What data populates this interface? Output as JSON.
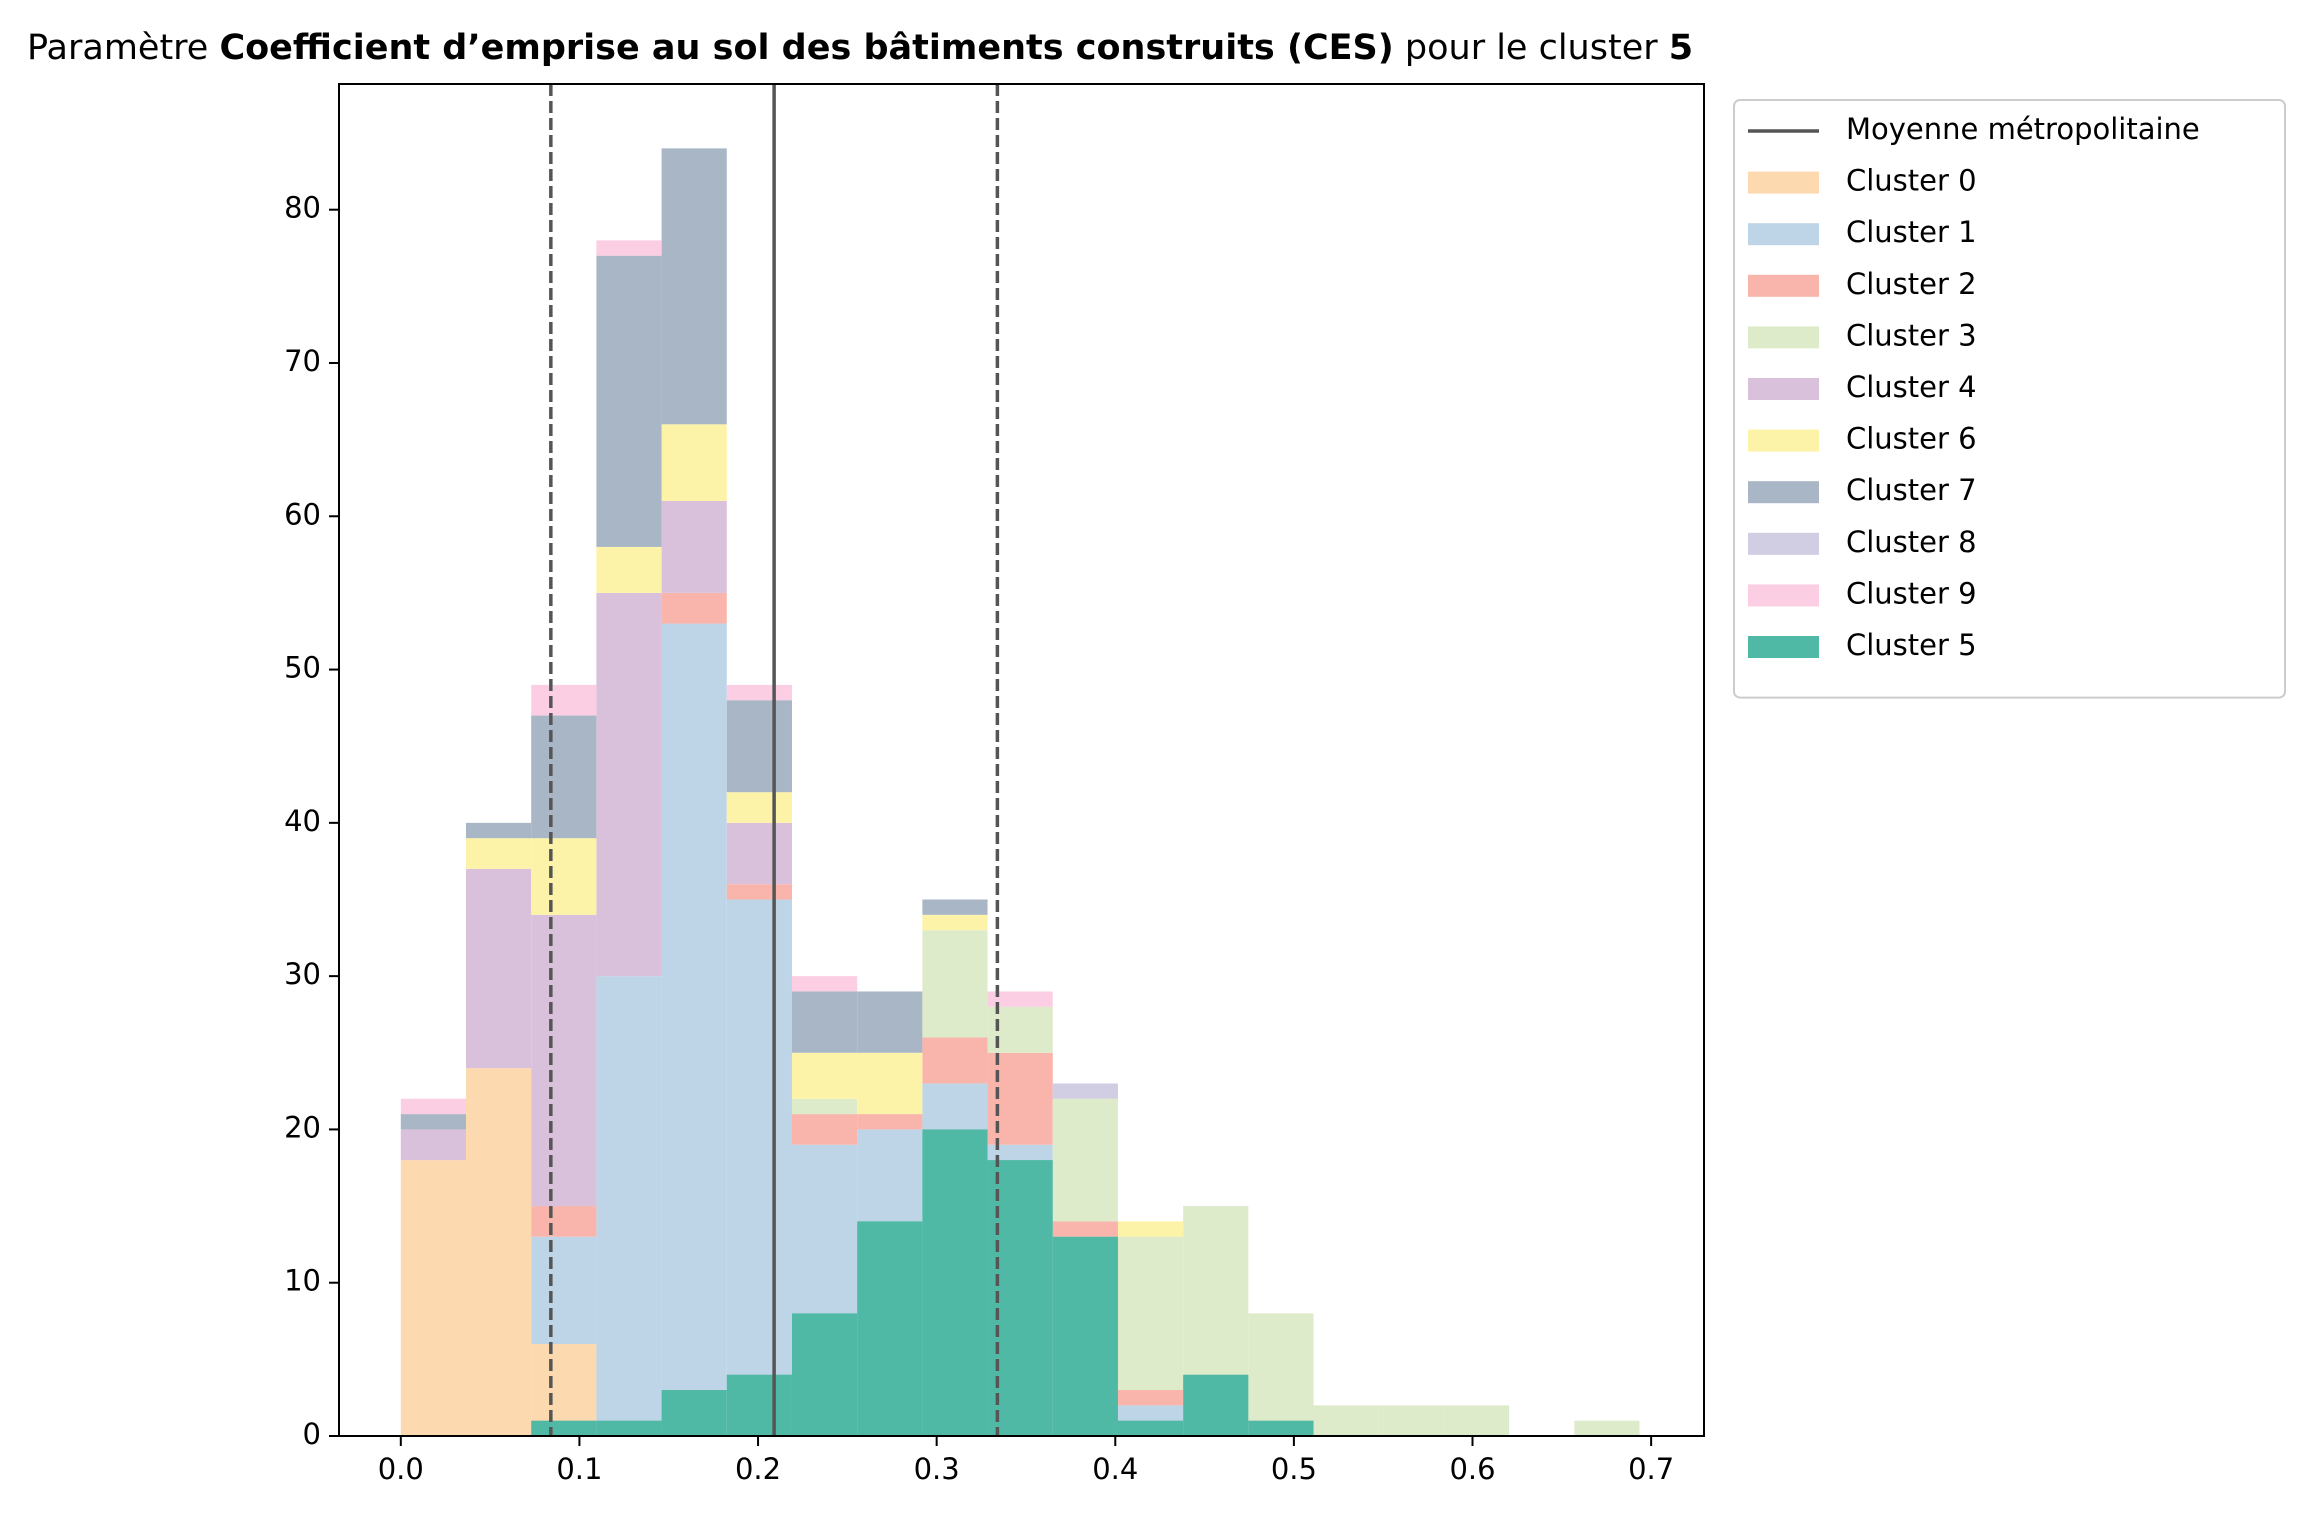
{
  "chart_data": {
    "type": "stacked_histogram",
    "title": [
      {
        "text": "Paramètre ",
        "bold": false
      },
      {
        "text": "Coefficient d’emprise au sol des bâtiments construits (CES)",
        "bold": true
      },
      {
        "text": " pour le cluster ",
        "bold": false
      },
      {
        "text": "5",
        "bold": true
      }
    ],
    "bins": [
      0,
      0.0365,
      0.073,
      0.1095,
      0.146,
      0.1825,
      0.219,
      0.2555,
      0.292,
      0.3285,
      0.365,
      0.4015,
      0.438,
      0.4745,
      0.511,
      0.5475,
      0.584,
      0.6205,
      0.657,
      0.6935
    ],
    "series": [
      {
        "name": "Cluster 0",
        "color": "#fdd9b0",
        "stacked": true,
        "values": [
          18,
          24,
          6,
          0,
          0,
          0,
          0,
          0,
          0,
          0,
          0,
          0,
          0,
          0,
          0,
          0,
          0,
          0,
          0
        ]
      },
      {
        "name": "Cluster 1",
        "color": "#bdd5e7",
        "stacked": true,
        "values": [
          0,
          0,
          7,
          30,
          53,
          35,
          19,
          20,
          23,
          19,
          13,
          2,
          0,
          0,
          0,
          0,
          0,
          0,
          0
        ]
      },
      {
        "name": "Cluster 2",
        "color": "#f9b5ac",
        "stacked": true,
        "values": [
          0,
          0,
          2,
          0,
          2,
          1,
          2,
          1,
          3,
          6,
          1,
          1,
          0,
          0,
          0,
          0,
          0,
          0,
          0
        ]
      },
      {
        "name": "Cluster 3",
        "color": "#deebca",
        "stacked": true,
        "values": [
          0,
          0,
          0,
          0,
          0,
          0,
          1,
          0,
          7,
          3,
          8,
          10,
          15,
          8,
          2,
          2,
          2,
          0,
          1
        ]
      },
      {
        "name": "Cluster 4",
        "color": "#d9c1dc",
        "stacked": true,
        "values": [
          2,
          13,
          19,
          25,
          6,
          4,
          0,
          0,
          0,
          0,
          0,
          0,
          0,
          0,
          0,
          0,
          0,
          0,
          0
        ]
      },
      {
        "name": "Cluster 6",
        "color": "#fdf3a8",
        "stacked": true,
        "values": [
          0,
          2,
          5,
          3,
          5,
          2,
          3,
          4,
          1,
          0,
          0,
          1,
          0,
          0,
          0,
          0,
          0,
          0,
          0
        ]
      },
      {
        "name": "Cluster 7",
        "color": "#a9b6c5",
        "stacked": true,
        "values": [
          1,
          1,
          8,
          19,
          18,
          6,
          4,
          4,
          1,
          0,
          0,
          0,
          0,
          0,
          0,
          0,
          0,
          0,
          0
        ]
      },
      {
        "name": "Cluster 8",
        "color": "#d1cee3",
        "stacked": true,
        "values": [
          0,
          0,
          0,
          0,
          0,
          0,
          0,
          0,
          0,
          0,
          1,
          0,
          0,
          0,
          0,
          0,
          0,
          0,
          0
        ]
      },
      {
        "name": "Cluster 9",
        "color": "#fbcee4",
        "stacked": true,
        "values": [
          1,
          0,
          2,
          1,
          0,
          1,
          1,
          0,
          0,
          1,
          0,
          0,
          0,
          0,
          0,
          0,
          0,
          0,
          0
        ]
      },
      {
        "name": "Cluster 5",
        "color": "#50b9a6",
        "stacked": false,
        "values": [
          0,
          0,
          1,
          1,
          3,
          4,
          8,
          14,
          20,
          18,
          13,
          1,
          4,
          1,
          0,
          0,
          0,
          0,
          0
        ]
      }
    ],
    "vlines": [
      {
        "name": "Moyenne métropolitaine",
        "x": 0.209,
        "color": "#555555",
        "style": "solid"
      },
      {
        "x": 0.084,
        "color": "#555555",
        "style": "dashed"
      },
      {
        "x": 0.334,
        "color": "#555555",
        "style": "dashed"
      }
    ],
    "xlim": [
      -0.0346,
      0.7296
    ],
    "ylim": [
      0,
      88.2
    ],
    "xticks": [
      {
        "value": 0,
        "label": "0.0"
      },
      0.1,
      0.2,
      0.3,
      0.4,
      0.5,
      0.6,
      0.7
    ],
    "yticks": [
      0,
      10,
      20,
      30,
      40,
      50,
      60,
      70,
      80
    ],
    "legend": "outside-upper-right"
  }
}
